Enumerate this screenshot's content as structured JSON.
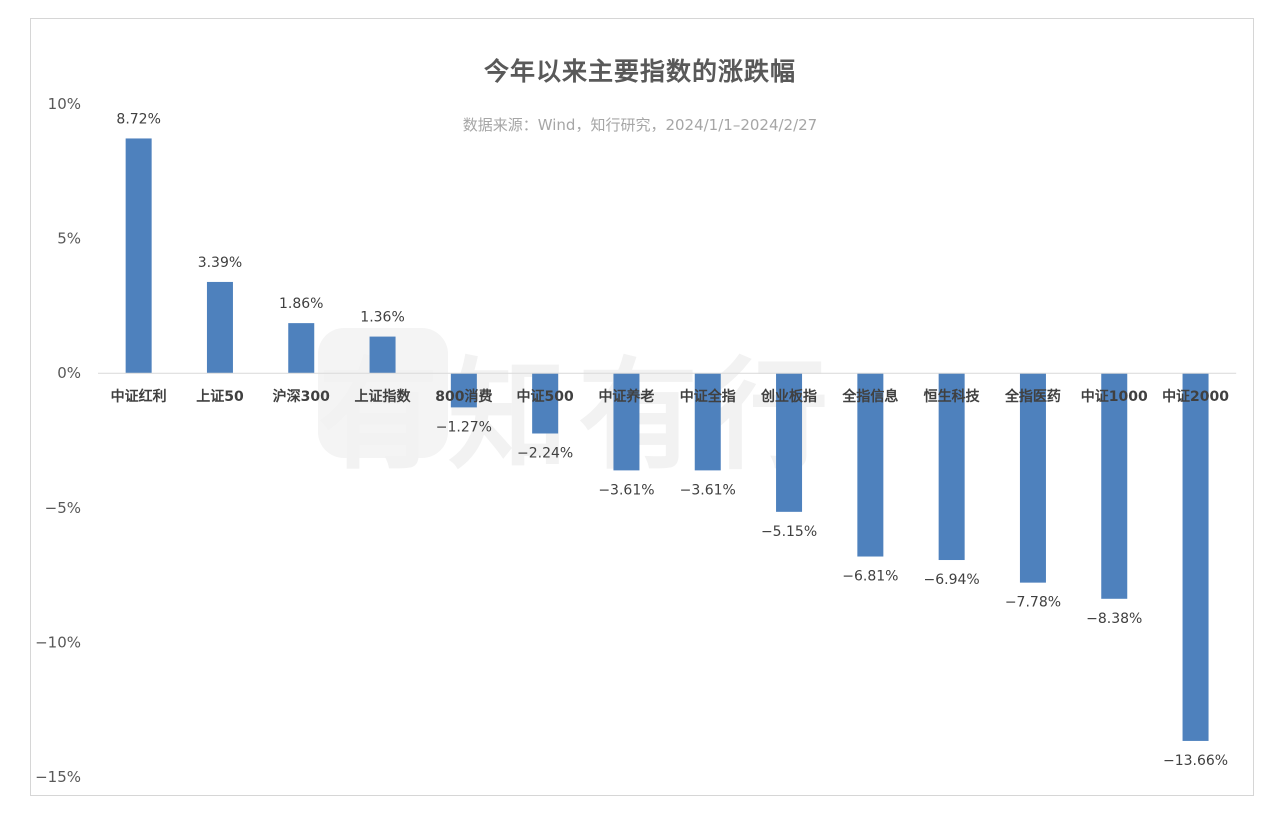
{
  "watermark": "有知有行",
  "chart_data": {
    "type": "bar",
    "title": "今年以来主要指数的涨跌幅",
    "subtitle": "数据来源：Wind，知行研究，2024/1/1–2024/2/27",
    "categories": [
      "中证红利",
      "上证50",
      "沪深300",
      "上证指数",
      "800消费",
      "中证500",
      "中证养老",
      "中证全指",
      "创业板指",
      "全指信息",
      "恒生科技",
      "全指医药",
      "中证1000",
      "中证2000"
    ],
    "values": [
      8.72,
      3.39,
      1.86,
      1.36,
      -1.27,
      -2.24,
      -3.61,
      -3.61,
      -5.15,
      -6.81,
      -6.94,
      -7.78,
      -8.38,
      -13.66
    ],
    "data_labels": [
      "8.72%",
      "3.39%",
      "1.86%",
      "1.36%",
      "−1.27%",
      "−2.24%",
      "−3.61%",
      "−3.61%",
      "−5.15%",
      "−6.81%",
      "−6.94%",
      "−7.78%",
      "−8.38%",
      "−13.66%"
    ],
    "yticks": [
      10,
      5,
      0,
      -5,
      -10,
      -15
    ],
    "ytick_labels": [
      "10%",
      "5%",
      "0%",
      "−5%",
      "−10%",
      "−15%"
    ],
    "ylim": [
      -15,
      10
    ],
    "bar_color": "#4e81bd",
    "grid": false,
    "legend": "none"
  }
}
